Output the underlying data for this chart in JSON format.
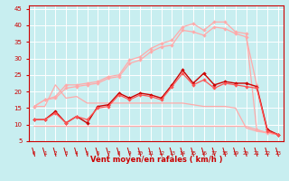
{
  "bg_color": "#c8eef0",
  "grid_color": "#ffffff",
  "xlabel": "Vent moyen/en rafales ( km/h )",
  "ylim": [
    5,
    46
  ],
  "yticks": [
    5,
    10,
    15,
    20,
    25,
    30,
    35,
    40,
    45
  ],
  "x": [
    0,
    1,
    2,
    3,
    4,
    5,
    6,
    7,
    8,
    9,
    10,
    11,
    12,
    13,
    14,
    15,
    16,
    17,
    18,
    19,
    20,
    21,
    22,
    23
  ],
  "c_light": "#ffaaaa",
  "c_mid": "#ff5555",
  "c_dark": "#cc0000",
  "line_rafales_upper": [
    15.5,
    17.5,
    18.5,
    22.0,
    22.0,
    22.5,
    23.0,
    24.5,
    25.0,
    29.5,
    30.5,
    33.0,
    34.5,
    35.5,
    39.5,
    40.5,
    38.5,
    41.0,
    41.0,
    38.0,
    37.5,
    8.5,
    7.5,
    7.0
  ],
  "line_rafales_lower": [
    15.5,
    17.5,
    18.0,
    21.0,
    21.5,
    22.0,
    22.5,
    24.0,
    24.5,
    28.5,
    29.5,
    32.0,
    33.5,
    34.0,
    38.5,
    38.0,
    37.0,
    39.5,
    39.0,
    37.5,
    36.5,
    22.0,
    8.0,
    7.0
  ],
  "line_moyen_upper": [
    11.5,
    11.5,
    14.0,
    10.5,
    12.5,
    10.5,
    15.5,
    16.0,
    19.5,
    18.0,
    19.5,
    19.0,
    18.0,
    22.0,
    26.5,
    22.5,
    25.5,
    22.0,
    23.0,
    22.5,
    22.5,
    21.5,
    8.5,
    7.0
  ],
  "line_moyen_lower": [
    11.5,
    11.5,
    13.5,
    10.5,
    12.5,
    11.5,
    15.0,
    15.5,
    19.0,
    17.5,
    19.0,
    18.5,
    17.5,
    21.5,
    25.5,
    22.0,
    23.5,
    21.0,
    22.5,
    22.0,
    21.5,
    21.0,
    8.0,
    7.0
  ],
  "line_flat_upper": [
    15.5,
    15.5,
    22.0,
    18.0,
    18.5,
    16.5,
    16.5,
    16.5,
    16.5,
    16.5,
    16.5,
    16.5,
    16.5,
    16.5,
    16.5,
    16.0,
    15.5,
    15.5,
    15.5,
    15.0,
    9.0,
    8.0,
    7.5,
    7.0
  ],
  "line_flat_lower": [
    9.5,
    9.5,
    9.5,
    9.5,
    9.5,
    9.5,
    9.5,
    9.5,
    9.5,
    9.5,
    9.5,
    9.5,
    9.5,
    9.5,
    9.5,
    9.5,
    9.5,
    9.5,
    9.5,
    9.5,
    9.5,
    8.5,
    7.5,
    7.0
  ]
}
